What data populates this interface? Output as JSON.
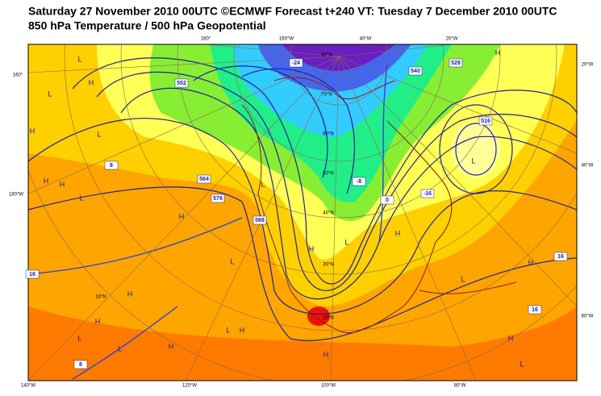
{
  "header": {
    "title": "Saturday 27 November 2010 00UTC ©ECMWF Forecast t+240 VT: Tuesday 7 December 2010 00UTC",
    "subtitle": "850 hPa Temperature / 500 hPa Geopotential"
  },
  "map": {
    "top_labels": [
      "180°",
      "160°W",
      "40°W",
      "20°W"
    ],
    "bottom_labels": [
      "140°W",
      "120°W",
      "100°W",
      "80°W"
    ],
    "left_labels": [
      "160°",
      "180°W"
    ],
    "right_labels": [
      "20°W",
      "40°W",
      "60°W"
    ],
    "latitude_labels": [
      "80°N",
      "70°N",
      "60°N",
      "50°N",
      "40°N",
      "30°N",
      "20°N",
      "10°N"
    ],
    "contour_labels": [
      "-24",
      "552",
      "564",
      "576",
      "588",
      "540",
      "528",
      "516",
      "16",
      "8",
      "0",
      "-8",
      "-16",
      "16",
      "16",
      "8"
    ],
    "centers": [
      "H",
      "L",
      "H",
      "L",
      "H",
      "L",
      "H",
      "H",
      "L",
      "H",
      "L",
      "L",
      "H",
      "L",
      "H",
      "L",
      "H",
      "L",
      "H",
      "H",
      "L",
      "H",
      "L",
      "H",
      "L",
      "H",
      "L",
      "H"
    ]
  }
}
